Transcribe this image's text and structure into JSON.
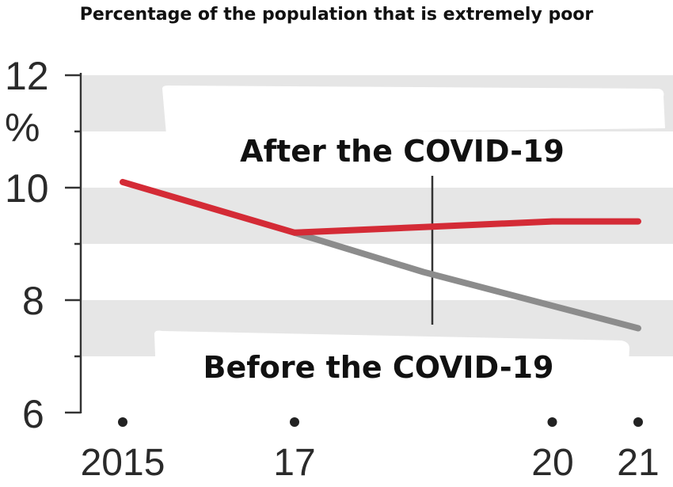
{
  "chart_data": {
    "type": "line",
    "title": "Percentage of the population that is extremely poor",
    "x_tick_labels": [
      "2015",
      "17",
      "20",
      "21"
    ],
    "x": [
      2015,
      2017,
      2020,
      2021
    ],
    "y_tick_labels": [
      "12",
      "10",
      "8",
      "6"
    ],
    "y_unit": "%",
    "ylim": [
      6,
      12
    ],
    "grid_bands": true,
    "series": [
      {
        "name": "After the COVID-19",
        "color": "#d42b36",
        "points": [
          [
            2015,
            10.1
          ],
          [
            2017,
            9.2
          ],
          [
            2018.5,
            9.3
          ],
          [
            2020,
            9.4
          ],
          [
            2021,
            9.4
          ]
        ]
      },
      {
        "name": "Before the COVID-19",
        "color": "#8c8c8c",
        "points": [
          [
            2017,
            9.2
          ],
          [
            2018.5,
            8.5
          ],
          [
            2020,
            7.9
          ],
          [
            2021,
            7.5
          ]
        ]
      }
    ],
    "annotations": [
      {
        "text": "After the COVID-19"
      },
      {
        "text": "Before the COVID-19"
      }
    ]
  }
}
